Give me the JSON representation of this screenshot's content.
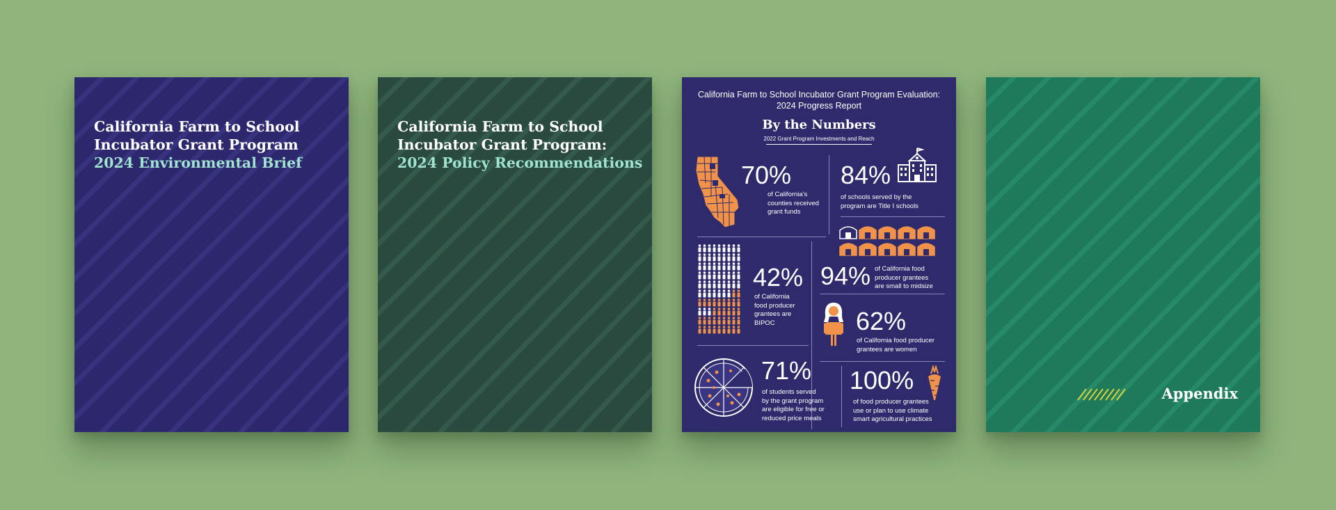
{
  "colors": {
    "background": "#8fb47c",
    "navy": "#2d286e",
    "forest": "#2b4a3f",
    "teal": "#1e7a5b",
    "accent_mint": "#9fe3d0",
    "accent_orange": "#f0924a"
  },
  "covers": [
    {
      "title_line1": "California Farm to School",
      "title_line2": "Incubator Grant Program",
      "subtitle": "2024 Environmental Brief"
    },
    {
      "title_line1": "California Farm to School",
      "title_line2": "Incubator Grant Program:",
      "subtitle": "2024 Policy Recommendations"
    }
  ],
  "infographic": {
    "header_line1": "California Farm to School Incubator Grant Program Evaluation:",
    "header_line2": "2024 Progress Report",
    "title": "By the Numbers",
    "subtitle": "2022 Grant Program Investments and Reach",
    "stats": [
      {
        "value": "70%",
        "caption": [
          "of California's",
          "counties received",
          "grant funds"
        ],
        "icon": "california-map-icon"
      },
      {
        "value": "84%",
        "caption": [
          "of schools served by the",
          "program are Title I schools"
        ],
        "icon": "school-building-icon"
      },
      {
        "value": "42%",
        "caption": [
          "of California",
          "food producer",
          "grantees are",
          "BIPOC"
        ],
        "icon": "people-grid-icon"
      },
      {
        "value": "94%",
        "caption": [
          "of California food",
          "producer grantees",
          "are small to midsize"
        ],
        "icon": "barn-icon"
      },
      {
        "value": "62%",
        "caption": [
          "of California food producer",
          "grantees are women"
        ],
        "icon": "woman-icon"
      },
      {
        "value": "71%",
        "caption": [
          "of students served",
          "by the grant program",
          "are eligible for free or",
          "reduced price meals"
        ],
        "icon": "pizza-icon"
      },
      {
        "value": "100%",
        "caption": [
          "of food producer grantees",
          "use or plan to use climate",
          "smart agricultural practices"
        ],
        "icon": "carrot-icon"
      }
    ]
  },
  "appendix": {
    "label": "Appendix"
  }
}
